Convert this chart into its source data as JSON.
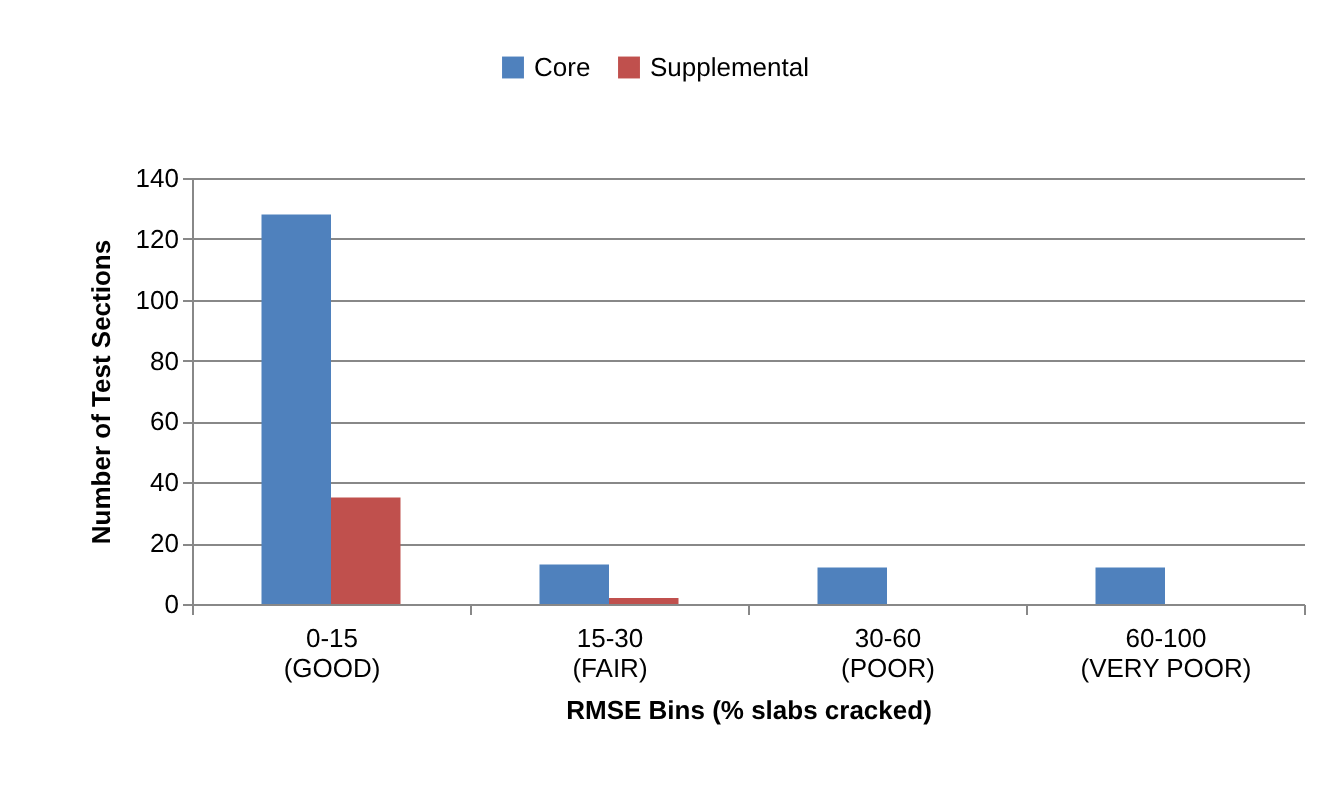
{
  "chart_data": {
    "type": "bar",
    "xlabel": "RMSE Bins (% slabs cracked)",
    "ylabel": "Number of Test Sections",
    "categories": [
      "0-15\n(GOOD)",
      "15-30\n(FAIR)",
      "30-60\n(POOR)",
      "60-100\n(VERY POOR)"
    ],
    "series": [
      {
        "name": "Core",
        "color": "#4f81bd",
        "values": [
          128,
          13,
          12,
          12
        ]
      },
      {
        "name": "Supplemental",
        "color": "#c0504d",
        "values": [
          35,
          2,
          0,
          0
        ]
      }
    ],
    "ylim": [
      0,
      140
    ],
    "yticks": [
      0,
      20,
      40,
      60,
      80,
      100,
      120,
      140
    ],
    "grid": "y",
    "legend": "top"
  }
}
